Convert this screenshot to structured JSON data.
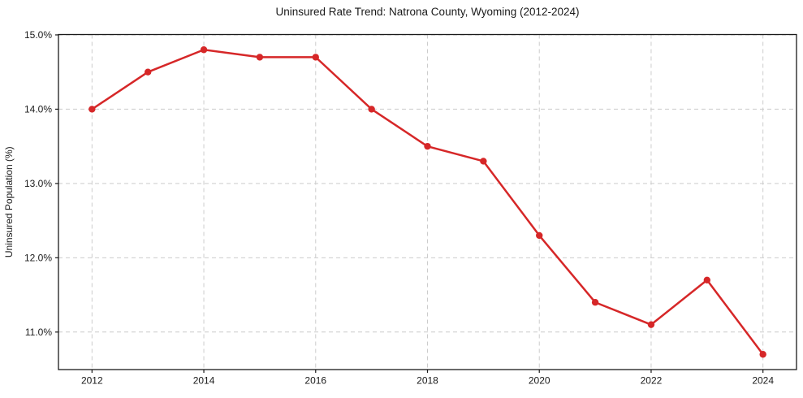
{
  "figure": {
    "background": "#ffffff"
  },
  "chart_data": {
    "type": "line",
    "title": "Uninsured Rate Trend: Natrona County, Wyoming (2012-2024)",
    "xlabel": "",
    "ylabel": "Uninsured Population (%)",
    "x": [
      2012,
      2013,
      2014,
      2015,
      2016,
      2017,
      2018,
      2019,
      2020,
      2021,
      2022,
      2023,
      2024
    ],
    "values": [
      14.0,
      14.5,
      14.8,
      14.7,
      14.7,
      14.0,
      13.5,
      13.3,
      12.3,
      11.4,
      11.1,
      11.7,
      10.7
    ],
    "x_ticks": [
      2012,
      2014,
      2016,
      2018,
      2020,
      2022,
      2024
    ],
    "x_tick_labels": [
      "2012",
      "2014",
      "2016",
      "2018",
      "2020",
      "2022",
      "2024"
    ],
    "y_ticks": [
      11,
      12,
      13,
      14,
      15
    ],
    "y_tick_labels": [
      "11.0%",
      "12.0%",
      "13.0%",
      "14.0%",
      "15.0%"
    ],
    "xlim": [
      2011.4,
      2024.6
    ],
    "ylim": [
      10.495,
      15.005
    ],
    "grid": true,
    "grid_style": "dashed",
    "legend": "none",
    "line_color": "#d62728",
    "marker": "circle",
    "marker_color": "#d62728",
    "grid_color": "#cccccc",
    "axis_color": "#1a1a1a",
    "text_color": "#1a1a1a"
  }
}
